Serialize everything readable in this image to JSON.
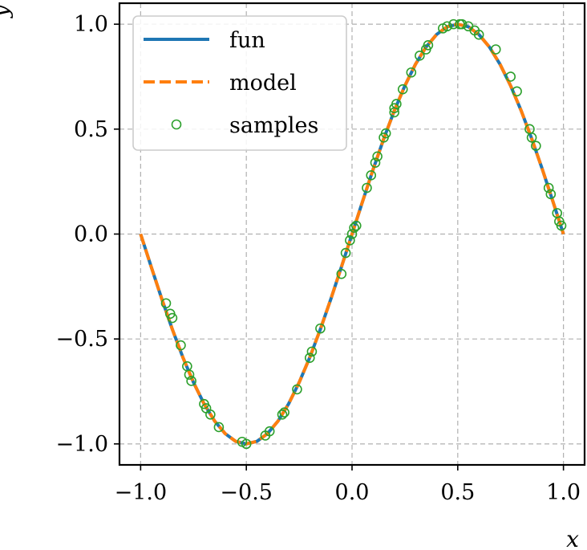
{
  "chart_data": {
    "type": "line",
    "title": "",
    "xlabel": "x",
    "ylabel": "y",
    "xlim": [
      -1.1,
      1.1
    ],
    "ylim": [
      -1.1,
      1.1
    ],
    "x_ticks": [
      -1.0,
      -0.5,
      0.0,
      0.5,
      1.0
    ],
    "y_ticks": [
      -1.0,
      -0.5,
      0.0,
      0.5,
      1.0
    ],
    "x_tick_labels": [
      "−1.0",
      "−0.5",
      "0.0",
      "0.5",
      "1.0"
    ],
    "y_tick_labels": [
      "−1.0",
      "−0.5",
      "0.0",
      "0.5",
      "1.0"
    ],
    "grid": true,
    "legend_position": "upper-left",
    "series": [
      {
        "name": "fun",
        "style": "solid-line",
        "color": "#1f77b4",
        "x": [
          -1.0,
          -0.95,
          -0.9,
          -0.85,
          -0.8,
          -0.75,
          -0.7,
          -0.65,
          -0.6,
          -0.55,
          -0.5,
          -0.45,
          -0.4,
          -0.35,
          -0.3,
          -0.25,
          -0.2,
          -0.15,
          -0.1,
          -0.05,
          0.0,
          0.05,
          0.1,
          0.15,
          0.2,
          0.25,
          0.3,
          0.35,
          0.4,
          0.45,
          0.5,
          0.55,
          0.6,
          0.65,
          0.7,
          0.75,
          0.8,
          0.85,
          0.9,
          0.95,
          1.0
        ],
        "y": [
          0.0,
          -0.156,
          -0.309,
          -0.454,
          -0.588,
          -0.707,
          -0.809,
          -0.891,
          -0.951,
          -0.988,
          -1.0,
          -0.988,
          -0.951,
          -0.891,
          -0.809,
          -0.707,
          -0.588,
          -0.454,
          -0.309,
          -0.156,
          0.0,
          0.156,
          0.309,
          0.454,
          0.588,
          0.707,
          0.809,
          0.891,
          0.951,
          0.988,
          1.0,
          0.988,
          0.951,
          0.891,
          0.809,
          0.707,
          0.588,
          0.454,
          0.309,
          0.156,
          0.0
        ]
      },
      {
        "name": "model",
        "style": "dashed-line",
        "color": "#ff7f0e",
        "x": [
          -1.0,
          -0.95,
          -0.9,
          -0.85,
          -0.8,
          -0.75,
          -0.7,
          -0.65,
          -0.6,
          -0.55,
          -0.5,
          -0.45,
          -0.4,
          -0.35,
          -0.3,
          -0.25,
          -0.2,
          -0.15,
          -0.1,
          -0.05,
          0.0,
          0.05,
          0.1,
          0.15,
          0.2,
          0.25,
          0.3,
          0.35,
          0.4,
          0.45,
          0.5,
          0.55,
          0.6,
          0.65,
          0.7,
          0.75,
          0.8,
          0.85,
          0.9,
          0.95,
          1.0
        ],
        "y": [
          0.0,
          -0.156,
          -0.309,
          -0.454,
          -0.588,
          -0.707,
          -0.809,
          -0.891,
          -0.951,
          -0.988,
          -1.0,
          -0.988,
          -0.951,
          -0.891,
          -0.809,
          -0.707,
          -0.588,
          -0.454,
          -0.309,
          -0.156,
          0.0,
          0.156,
          0.309,
          0.454,
          0.588,
          0.707,
          0.809,
          0.891,
          0.951,
          0.988,
          1.0,
          0.988,
          0.951,
          0.891,
          0.809,
          0.707,
          0.588,
          0.454,
          0.309,
          0.156,
          0.0
        ]
      },
      {
        "name": "samples",
        "style": "open-circle-markers",
        "color": "#2ca02c",
        "x": [
          -0.88,
          -0.86,
          -0.85,
          -0.81,
          -0.78,
          -0.77,
          -0.76,
          -0.7,
          -0.69,
          -0.67,
          -0.63,
          -0.52,
          -0.5,
          -0.41,
          -0.39,
          -0.33,
          -0.32,
          -0.26,
          -0.2,
          -0.19,
          -0.15,
          -0.05,
          -0.03,
          -0.01,
          0.0,
          0.01,
          0.02,
          0.07,
          0.09,
          0.11,
          0.12,
          0.15,
          0.16,
          0.2,
          0.2,
          0.21,
          0.24,
          0.28,
          0.32,
          0.35,
          0.36,
          0.43,
          0.45,
          0.48,
          0.51,
          0.52,
          0.55,
          0.58,
          0.6,
          0.68,
          0.75,
          0.78,
          0.84,
          0.85,
          0.87,
          0.93,
          0.94,
          0.97,
          0.98,
          0.99
        ],
        "y": [
          -0.33,
          -0.38,
          -0.4,
          -0.53,
          -0.63,
          -0.67,
          -0.7,
          -0.81,
          -0.83,
          -0.86,
          -0.92,
          -0.99,
          -1.0,
          -0.96,
          -0.94,
          -0.86,
          -0.85,
          -0.74,
          -0.59,
          -0.56,
          -0.45,
          -0.19,
          -0.09,
          -0.03,
          0.0,
          0.03,
          0.04,
          0.22,
          0.28,
          0.34,
          0.37,
          0.46,
          0.48,
          0.58,
          0.6,
          0.62,
          0.69,
          0.77,
          0.85,
          0.88,
          0.9,
          0.98,
          0.99,
          1.0,
          1.0,
          1.0,
          0.99,
          0.97,
          0.95,
          0.88,
          0.75,
          0.68,
          0.5,
          0.46,
          0.42,
          0.22,
          0.19,
          0.1,
          0.06,
          0.04
        ]
      }
    ]
  }
}
